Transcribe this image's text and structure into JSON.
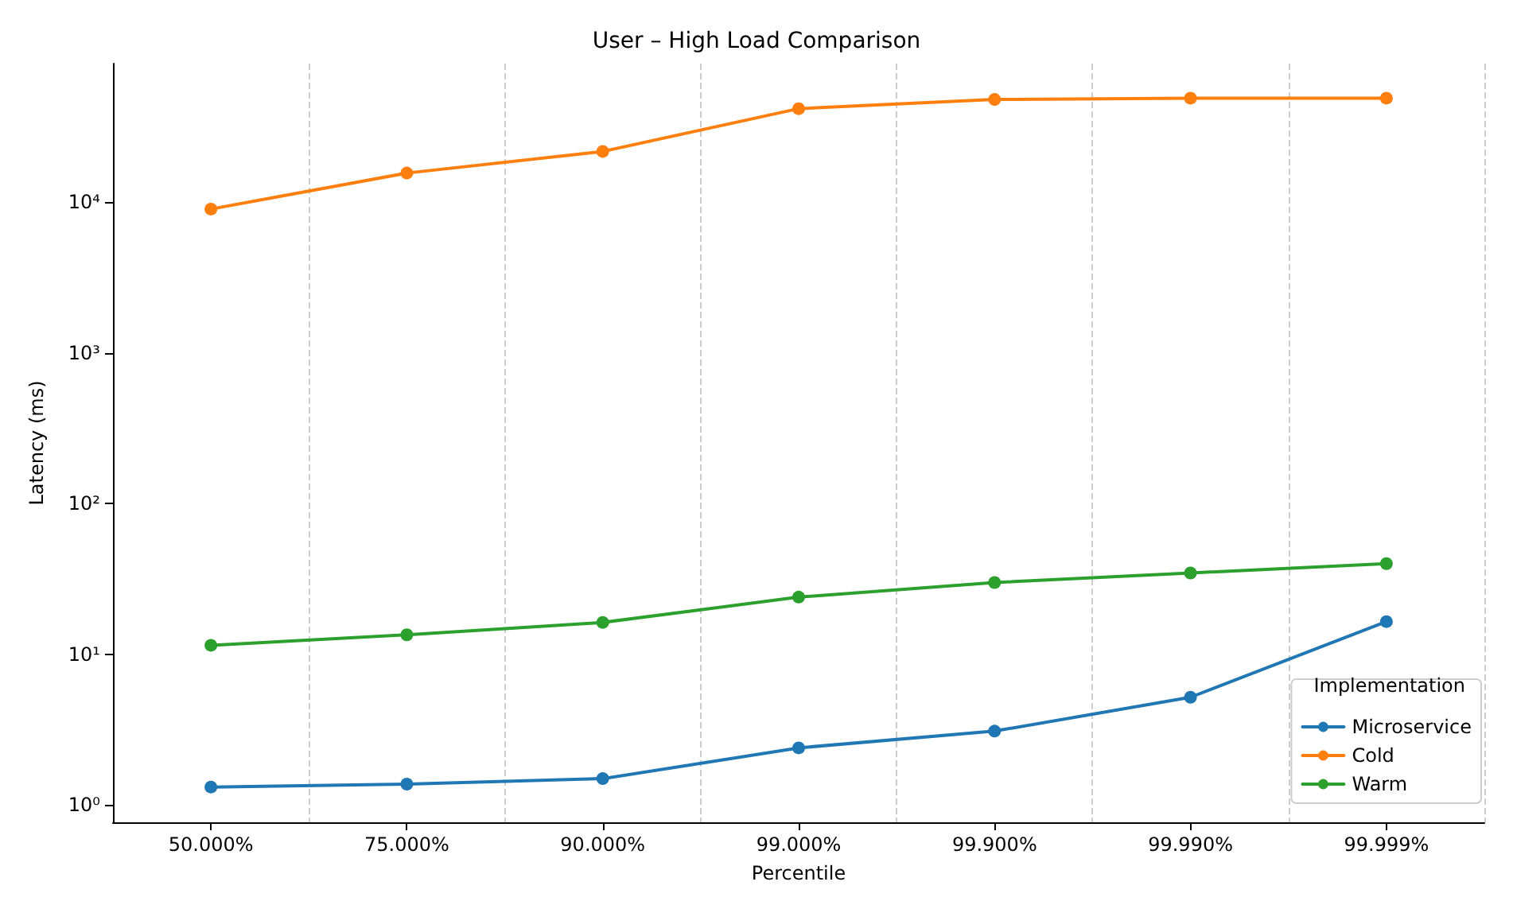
{
  "chart_data": {
    "type": "line",
    "title": "User – High Load Comparison",
    "xlabel": "Percentile",
    "ylabel": "Latency (ms)",
    "legend_title": "Implementation",
    "categories": [
      "50.000%",
      "75.000%",
      "90.000%",
      "99.000%",
      "99.900%",
      "99.990%",
      "99.999%"
    ],
    "series": [
      {
        "name": "Microservice",
        "color": "#1f77b4",
        "values": [
          1.32,
          1.38,
          1.5,
          2.4,
          3.1,
          5.2,
          16.5
        ]
      },
      {
        "name": "Cold",
        "color": "#ff7f0e",
        "values": [
          9000,
          15600,
          21700,
          41700,
          48000,
          49000,
          49000
        ]
      },
      {
        "name": "Warm",
        "color": "#2ca02c",
        "values": [
          11.5,
          13.5,
          16.3,
          24,
          30,
          34.7,
          40
        ]
      }
    ],
    "log": "y",
    "ylim": [
      0.77,
      83000
    ],
    "yticks": [
      {
        "value": 1,
        "label": "10⁰"
      },
      {
        "value": 10,
        "label": "10¹"
      },
      {
        "value": 100,
        "label": "10²"
      },
      {
        "value": 1000,
        "label": "10³"
      },
      {
        "value": 10000,
        "label": "10⁴"
      }
    ],
    "grid": "x",
    "legend": "bottom right",
    "marker": "circle",
    "line_style": "solid"
  }
}
